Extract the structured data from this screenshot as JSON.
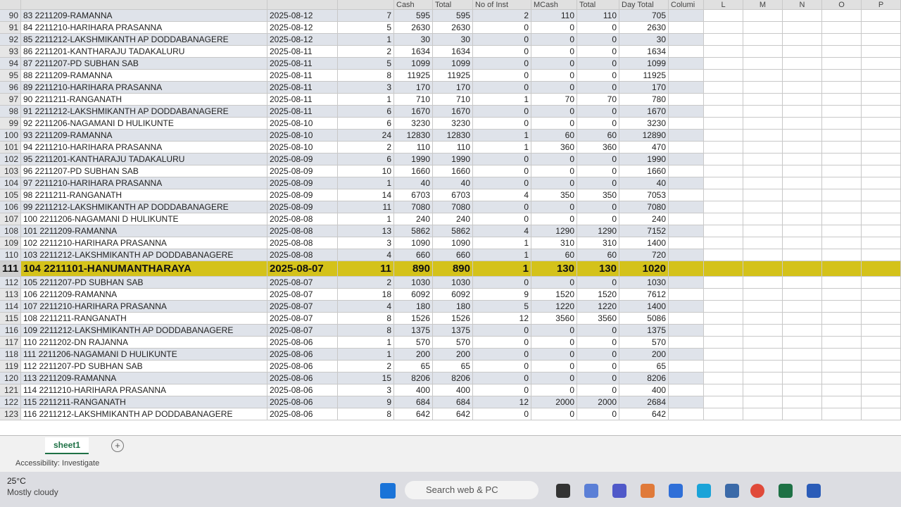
{
  "header": {
    "columns": [
      "Cash",
      "Total",
      "No of Inst",
      "MCash",
      "Total",
      "Day Total",
      "Columi"
    ],
    "letters": [
      "L",
      "M",
      "N",
      "O",
      "P"
    ]
  },
  "rows": [
    {
      "row_number": 90,
      "name": "83 2211209-RAMANNA",
      "date": "2025-08-12",
      "count": 7,
      "cash": 595,
      "total": 595,
      "installments": 2,
      "mcash": 110,
      "mcash_total": 110,
      "day_total": 705
    },
    {
      "row_number": 91,
      "name": "84 2211210-HARIHARA PRASANNA",
      "date": "2025-08-12",
      "count": 5,
      "cash": 2630,
      "total": 2630,
      "installments": 0,
      "mcash": 0,
      "mcash_total": 0,
      "day_total": 2630
    },
    {
      "row_number": 92,
      "name": "85 2211212-LAKSHMIKANTH AP DODDABANAGERE",
      "date": "2025-08-12",
      "count": 1,
      "cash": 30,
      "total": 30,
      "installments": 0,
      "mcash": 0,
      "mcash_total": 0,
      "day_total": 30
    },
    {
      "row_number": 93,
      "name": "86 2211201-KANTHARAJU TADAKALURU",
      "date": "2025-08-11",
      "count": 2,
      "cash": 1634,
      "total": 1634,
      "installments": 0,
      "mcash": 0,
      "mcash_total": 0,
      "day_total": 1634
    },
    {
      "row_number": 94,
      "name": "87 2211207-PD SUBHAN SAB",
      "date": "2025-08-11",
      "count": 5,
      "cash": 1099,
      "total": 1099,
      "installments": 0,
      "mcash": 0,
      "mcash_total": 0,
      "day_total": 1099
    },
    {
      "row_number": 95,
      "name": "88 2211209-RAMANNA",
      "date": "2025-08-11",
      "count": 8,
      "cash": 11925,
      "total": 11925,
      "installments": 0,
      "mcash": 0,
      "mcash_total": 0,
      "day_total": 11925
    },
    {
      "row_number": 96,
      "name": "89 2211210-HARIHARA PRASANNA",
      "date": "2025-08-11",
      "count": 3,
      "cash": 170,
      "total": 170,
      "installments": 0,
      "mcash": 0,
      "mcash_total": 0,
      "day_total": 170
    },
    {
      "row_number": 97,
      "name": "90 2211211-RANGANATH",
      "date": "2025-08-11",
      "count": 1,
      "cash": 710,
      "total": 710,
      "installments": 1,
      "mcash": 70,
      "mcash_total": 70,
      "day_total": 780
    },
    {
      "row_number": 98,
      "name": "91 2211212-LAKSHMIKANTH AP DODDABANAGERE",
      "date": "2025-08-11",
      "count": 6,
      "cash": 1670,
      "total": 1670,
      "installments": 0,
      "mcash": 0,
      "mcash_total": 0,
      "day_total": 1670
    },
    {
      "row_number": 99,
      "name": "92 2211206-NAGAMANI D HULIKUNTE",
      "date": "2025-08-10",
      "count": 6,
      "cash": 3230,
      "total": 3230,
      "installments": 0,
      "mcash": 0,
      "mcash_total": 0,
      "day_total": 3230
    },
    {
      "row_number": 100,
      "name": "93 2211209-RAMANNA",
      "date": "2025-08-10",
      "count": 24,
      "cash": 12830,
      "total": 12830,
      "installments": 1,
      "mcash": 60,
      "mcash_total": 60,
      "day_total": 12890
    },
    {
      "row_number": 101,
      "name": "94 2211210-HARIHARA PRASANNA",
      "date": "2025-08-10",
      "count": 2,
      "cash": 110,
      "total": 110,
      "installments": 1,
      "mcash": 360,
      "mcash_total": 360,
      "day_total": 470
    },
    {
      "row_number": 102,
      "name": "95 2211201-KANTHARAJU TADAKALURU",
      "date": "2025-08-09",
      "count": 6,
      "cash": 1990,
      "total": 1990,
      "installments": 0,
      "mcash": 0,
      "mcash_total": 0,
      "day_total": 1990
    },
    {
      "row_number": 103,
      "name": "96 2211207-PD SUBHAN SAB",
      "date": "2025-08-09",
      "count": 10,
      "cash": 1660,
      "total": 1660,
      "installments": 0,
      "mcash": 0,
      "mcash_total": 0,
      "day_total": 1660
    },
    {
      "row_number": 104,
      "name": "97 2211210-HARIHARA PRASANNA",
      "date": "2025-08-09",
      "count": 1,
      "cash": 40,
      "total": 40,
      "installments": 0,
      "mcash": 0,
      "mcash_total": 0,
      "day_total": 40
    },
    {
      "row_number": 105,
      "name": "98 2211211-RANGANATH",
      "date": "2025-08-09",
      "count": 14,
      "cash": 6703,
      "total": 6703,
      "installments": 4,
      "mcash": 350,
      "mcash_total": 350,
      "day_total": 7053
    },
    {
      "row_number": 106,
      "name": "99 2211212-LAKSHMIKANTH AP DODDABANAGERE",
      "date": "2025-08-09",
      "count": 11,
      "cash": 7080,
      "total": 7080,
      "installments": 0,
      "mcash": 0,
      "mcash_total": 0,
      "day_total": 7080
    },
    {
      "row_number": 107,
      "name": "100 2211206-NAGAMANI D HULIKUNTE",
      "date": "2025-08-08",
      "count": 1,
      "cash": 240,
      "total": 240,
      "installments": 0,
      "mcash": 0,
      "mcash_total": 0,
      "day_total": 240
    },
    {
      "row_number": 108,
      "name": "101 2211209-RAMANNA",
      "date": "2025-08-08",
      "count": 13,
      "cash": 5862,
      "total": 5862,
      "installments": 4,
      "mcash": 1290,
      "mcash_total": 1290,
      "day_total": 7152
    },
    {
      "row_number": 109,
      "name": "102 2211210-HARIHARA PRASANNA",
      "date": "2025-08-08",
      "count": 3,
      "cash": 1090,
      "total": 1090,
      "installments": 1,
      "mcash": 310,
      "mcash_total": 310,
      "day_total": 1400
    },
    {
      "row_number": 110,
      "name": "103 2211212-LAKSHMIKANTH AP DODDABANAGERE",
      "date": "2025-08-08",
      "count": 4,
      "cash": 660,
      "total": 660,
      "installments": 1,
      "mcash": 60,
      "mcash_total": 60,
      "day_total": 720
    },
    {
      "row_number": 111,
      "name": "104 2211101-HANUMANTHARAYA",
      "date": "2025-08-07",
      "count": 11,
      "cash": 890,
      "total": 890,
      "installments": 1,
      "mcash": 130,
      "mcash_total": 130,
      "day_total": 1020,
      "highlighted": true
    },
    {
      "row_number": 112,
      "name": "105 2211207-PD SUBHAN SAB",
      "date": "2025-08-07",
      "count": 2,
      "cash": 1030,
      "total": 1030,
      "installments": 0,
      "mcash": 0,
      "mcash_total": 0,
      "day_total": 1030
    },
    {
      "row_number": 113,
      "name": "106 2211209-RAMANNA",
      "date": "2025-08-07",
      "count": 18,
      "cash": 6092,
      "total": 6092,
      "installments": 9,
      "mcash": 1520,
      "mcash_total": 1520,
      "day_total": 7612
    },
    {
      "row_number": 114,
      "name": "107 2211210-HARIHARA PRASANNA",
      "date": "2025-08-07",
      "count": 4,
      "cash": 180,
      "total": 180,
      "installments": 5,
      "mcash": 1220,
      "mcash_total": 1220,
      "day_total": 1400
    },
    {
      "row_number": 115,
      "name": "108 2211211-RANGANATH",
      "date": "2025-08-07",
      "count": 8,
      "cash": 1526,
      "total": 1526,
      "installments": 12,
      "mcash": 3560,
      "mcash_total": 3560,
      "day_total": 5086
    },
    {
      "row_number": 116,
      "name": "109 2211212-LAKSHMIKANTH AP DODDABANAGERE",
      "date": "2025-08-07",
      "count": 8,
      "cash": 1375,
      "total": 1375,
      "installments": 0,
      "mcash": 0,
      "mcash_total": 0,
      "day_total": 1375
    },
    {
      "row_number": 117,
      "name": "110 2211202-DN RAJANNA",
      "date": "2025-08-06",
      "count": 1,
      "cash": 570,
      "total": 570,
      "installments": 0,
      "mcash": 0,
      "mcash_total": 0,
      "day_total": 570
    },
    {
      "row_number": 118,
      "name": "111 2211206-NAGAMANI D HULIKUNTE",
      "date": "2025-08-06",
      "count": 1,
      "cash": 200,
      "total": 200,
      "installments": 0,
      "mcash": 0,
      "mcash_total": 0,
      "day_total": 200
    },
    {
      "row_number": 119,
      "name": "112 2211207-PD SUBHAN SAB",
      "date": "2025-08-06",
      "count": 2,
      "cash": 65,
      "total": 65,
      "installments": 0,
      "mcash": 0,
      "mcash_total": 0,
      "day_total": 65
    },
    {
      "row_number": 120,
      "name": "113 2211209-RAMANNA",
      "date": "2025-08-06",
      "count": 15,
      "cash": 8206,
      "total": 8206,
      "installments": 0,
      "mcash": 0,
      "mcash_total": 0,
      "day_total": 8206
    },
    {
      "row_number": 121,
      "name": "114 2211210-HARIHARA PRASANNA",
      "date": "2025-08-06",
      "count": 3,
      "cash": 400,
      "total": 400,
      "installments": 0,
      "mcash": 0,
      "mcash_total": 0,
      "day_total": 400
    },
    {
      "row_number": 122,
      "name": "115 2211211-RANGANATH",
      "date": "2025-08-06",
      "count": 9,
      "cash": 684,
      "total": 684,
      "installments": 12,
      "mcash": 2000,
      "mcash_total": 2000,
      "day_total": 2684
    },
    {
      "row_number": 123,
      "name": "116 2211212-LAKSHMIKANTH AP DODDABANAGERE",
      "date": "2025-08-06",
      "count": 8,
      "cash": 642,
      "total": 642,
      "installments": 0,
      "mcash": 0,
      "mcash_total": 0,
      "day_total": 642
    }
  ],
  "sheet_tab": "sheet1",
  "add_sheet": "+",
  "status": "Accessibility: Investigate",
  "taskbar": {
    "temperature": "25°C",
    "weather": "Mostly cloudy",
    "search": "Search web & PC"
  }
}
